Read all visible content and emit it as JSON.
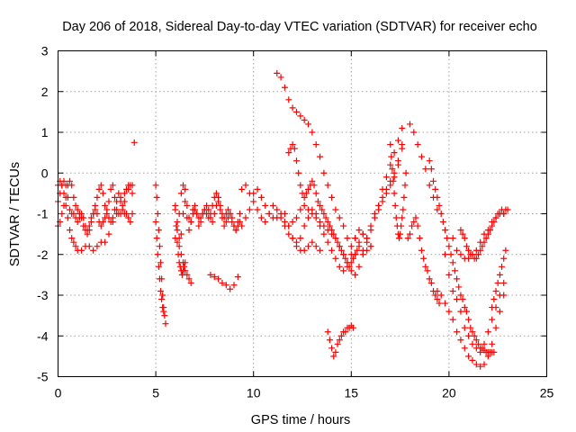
{
  "chart_data": {
    "type": "scatter",
    "title": "Day 206 of 2018, Sidereal Day-to-day VTEC variation (SDTVAR) for receiver echo",
    "xlabel": "GPS time / hours",
    "ylabel": "SDTVAR / TECUs",
    "xlim": [
      0,
      25
    ],
    "ylim": [
      -5,
      3
    ],
    "xticks": [
      0,
      5,
      10,
      15,
      20,
      25
    ],
    "yticks": [
      -5,
      -4,
      -3,
      -2,
      -1,
      0,
      1,
      2,
      3
    ],
    "grid": true,
    "marker": "+",
    "color": "#ff0000",
    "series": [
      {
        "name": "SDTVAR",
        "x": [
          0.0,
          0.1,
          0.2,
          0.3,
          0.4,
          0.5,
          0.6,
          0.7,
          0.8,
          0.9,
          1.0,
          1.1,
          1.2,
          1.3,
          1.4,
          1.5,
          1.6,
          1.7,
          1.8,
          1.9,
          2.0,
          2.1,
          2.2,
          2.3,
          2.4,
          2.5,
          2.6,
          2.7,
          2.8,
          2.9,
          3.0,
          3.1,
          3.2,
          3.3,
          3.4,
          3.5,
          3.6,
          3.7,
          3.8,
          0.0,
          0.1,
          0.2,
          0.3,
          0.4,
          0.5,
          0.6,
          0.7,
          0.8,
          0.9,
          1.0,
          1.1,
          1.2,
          1.3,
          1.4,
          1.5,
          1.6,
          1.7,
          1.8,
          1.9,
          2.0,
          2.1,
          2.2,
          2.3,
          2.4,
          2.5,
          2.6,
          2.7,
          2.8,
          2.9,
          3.0,
          3.1,
          3.2,
          3.3,
          3.4,
          3.5,
          3.6,
          3.7,
          3.8,
          0.0,
          0.1,
          0.2,
          0.3,
          0.4,
          0.5,
          0.6,
          0.7,
          0.8,
          0.9,
          1.0,
          1.2,
          1.4,
          1.6,
          1.8,
          2.0,
          2.2,
          2.4,
          2.6,
          2.8,
          3.0,
          3.2,
          3.4,
          3.6,
          3.8,
          3.9,
          5.0,
          5.05,
          5.1,
          5.15,
          5.2,
          5.25,
          5.3,
          5.35,
          5.4,
          5.45,
          5.5,
          5.0,
          5.05,
          5.1,
          5.15,
          5.2,
          5.25,
          5.3,
          5.35,
          5.4,
          6.0,
          6.1,
          6.2,
          6.3,
          6.4,
          6.5,
          6.6,
          6.7,
          6.8,
          6.9,
          7.0,
          7.1,
          7.2,
          7.3,
          7.4,
          7.5,
          7.6,
          7.7,
          7.8,
          7.9,
          8.0,
          8.1,
          8.2,
          8.3,
          8.4,
          8.5,
          8.6,
          8.7,
          8.8,
          8.9,
          9.0,
          9.1,
          9.2,
          9.3,
          6.0,
          6.1,
          6.2,
          6.3,
          6.4,
          6.5,
          6.6,
          6.7,
          6.8,
          6.9,
          7.0,
          7.1,
          7.2,
          7.3,
          7.4,
          7.5,
          7.6,
          7.7,
          7.8,
          7.9,
          8.0,
          8.1,
          8.2,
          8.3,
          8.4,
          8.5,
          8.6,
          8.7,
          8.8,
          8.9,
          9.0,
          9.1,
          9.2,
          9.3,
          6.0,
          6.05,
          6.1,
          6.15,
          6.2,
          6.25,
          6.3,
          6.35,
          6.4,
          6.45,
          6.5,
          6.2,
          6.3,
          6.4,
          6.5,
          6.6,
          6.7,
          6.8,
          7.8,
          8.0,
          8.2,
          8.4,
          8.6,
          8.8,
          9.0,
          9.2,
          9.4,
          9.6,
          9.8,
          10.0,
          10.2,
          10.4,
          10.6,
          10.8,
          11.0,
          11.2,
          11.4,
          11.6,
          11.8,
          12.0,
          12.2,
          12.4,
          12.6,
          12.8,
          13.0,
          13.2,
          13.4,
          13.6,
          13.8,
          14.0,
          14.2,
          14.4,
          14.6,
          14.8,
          15.0,
          15.2,
          15.4,
          15.6,
          15.8,
          16.0,
          9.4,
          9.6,
          9.8,
          10.0,
          10.2,
          10.4,
          10.6,
          10.8,
          11.0,
          11.2,
          11.4,
          11.6,
          11.8,
          12.0,
          12.2,
          12.4,
          12.6,
          12.8,
          13.0,
          13.2,
          13.4,
          13.6,
          13.8,
          14.0,
          14.2,
          14.4,
          14.6,
          14.8,
          15.0,
          15.2,
          15.4,
          15.6,
          15.8,
          16.0,
          11.2,
          11.4,
          11.6,
          11.8,
          12.0,
          12.2,
          12.4,
          12.6,
          12.8,
          13.0,
          13.2,
          13.4,
          13.6,
          13.8,
          14.0,
          14.2,
          14.4,
          14.6,
          14.8,
          15.0,
          11.8,
          11.9,
          12.0,
          12.1,
          12.2,
          12.3,
          12.4,
          12.5,
          12.6,
          12.7,
          12.8,
          12.9,
          13.0,
          13.1,
          13.2,
          13.3,
          13.4,
          13.5,
          13.6,
          13.7,
          13.8,
          13.9,
          14.0,
          14.1,
          14.2,
          14.3,
          14.4,
          14.5,
          14.6,
          14.7,
          14.8,
          14.9,
          15.0,
          15.1,
          15.2,
          15.3,
          11.6,
          11.8,
          12.0,
          12.2,
          12.4,
          12.6,
          12.8,
          13.0,
          13.2,
          13.4,
          13.8,
          13.9,
          14.0,
          14.1,
          14.2,
          14.3,
          14.4,
          14.5,
          14.6,
          14.7,
          14.8,
          14.9,
          15.0,
          15.1,
          15.2,
          15.4,
          15.6,
          15.8,
          16.0,
          16.2,
          16.4,
          16.6,
          16.8,
          17.0,
          17.2,
          17.4,
          17.6,
          15.2,
          15.4,
          15.6,
          15.8,
          16.0,
          16.2,
          16.4,
          16.6,
          16.8,
          17.0,
          17.2,
          17.4,
          17.6,
          16.4,
          16.6,
          16.8,
          17.0,
          17.2,
          17.4,
          17.6,
          17.0,
          17.05,
          17.1,
          17.15,
          17.2,
          17.25,
          17.3,
          17.35,
          17.4,
          17.45,
          17.5,
          17.55,
          17.6,
          17.65,
          17.7,
          17.75,
          17.8,
          17.9,
          18.0,
          18.1,
          18.2,
          18.3,
          18.4,
          18.5,
          18.6,
          18.7,
          18.8,
          18.9,
          19.0,
          19.1,
          19.2,
          19.3,
          19.4,
          19.5,
          18.0,
          18.2,
          18.4,
          18.6,
          18.8,
          19.0,
          19.2,
          19.4,
          19.0,
          19.1,
          19.2,
          19.3,
          19.4,
          19.5,
          19.6,
          19.7,
          19.8,
          19.9,
          20.0,
          20.1,
          20.2,
          20.3,
          20.4,
          20.5,
          20.6,
          20.7,
          20.8,
          20.9,
          21.0,
          21.1,
          21.2,
          21.3,
          21.4,
          21.5,
          21.6,
          21.7,
          21.8,
          21.9,
          22.0,
          22.1,
          22.2,
          22.3,
          19.8,
          20.0,
          20.2,
          20.4,
          20.6,
          20.8,
          21.0,
          21.2,
          21.4,
          21.6,
          21.8,
          22.0,
          22.2,
          22.4,
          22.6,
          22.8,
          19.4,
          19.6,
          19.8,
          20.0,
          20.2,
          20.4,
          20.6,
          20.8,
          21.0,
          21.2,
          21.4,
          21.6,
          21.8,
          22.0,
          22.2,
          22.4,
          22.6,
          22.8,
          20.2,
          20.4,
          20.6,
          20.8,
          21.0,
          21.2,
          21.4,
          21.6,
          21.8,
          22.0,
          22.2,
          22.4,
          22.6,
          22.8,
          20.6,
          20.7,
          20.8,
          20.9,
          21.0,
          21.1,
          21.2,
          21.3,
          21.4,
          21.5,
          21.6,
          21.7,
          21.8,
          21.9,
          22.0,
          22.1,
          22.2,
          22.3,
          22.4,
          22.5,
          22.6,
          22.7,
          22.8,
          22.9,
          23.0,
          22.2,
          22.3,
          22.4,
          22.5,
          22.6,
          22.7,
          22.8,
          22.9
        ],
        "y": [
          -0.7,
          -0.5,
          -0.3,
          -0.2,
          -0.3,
          -0.6,
          -0.9,
          -1.0,
          -1.0,
          -1.1,
          -1.2,
          -1.1,
          -1.0,
          -1.1,
          -1.3,
          -1.4,
          -1.3,
          -1.1,
          -1.0,
          -0.9,
          -1.0,
          -1.2,
          -1.3,
          -1.2,
          -1.1,
          -1.0,
          -0.7,
          -0.4,
          -0.3,
          -0.6,
          -0.9,
          -1.0,
          -1.0,
          -0.9,
          -0.7,
          -0.4,
          -0.3,
          -0.3,
          -0.3,
          -1.3,
          -1.2,
          -1.0,
          -0.8,
          -0.6,
          -0.3,
          -0.2,
          -0.3,
          -0.6,
          -0.8,
          -0.9,
          -1.0,
          -1.1,
          -1.3,
          -1.4,
          -1.5,
          -1.4,
          -1.2,
          -1.0,
          -0.8,
          -0.6,
          -0.4,
          -0.3,
          -0.5,
          -0.8,
          -0.9,
          -1.1,
          -1.2,
          -1.1,
          -0.9,
          -0.7,
          -0.5,
          -0.6,
          -0.8,
          -1.0,
          -1.0,
          -1.1,
          -1.2,
          -1.0,
          -0.3,
          -0.2,
          -0.3,
          -0.5,
          -0.8,
          -1.1,
          -1.4,
          -1.6,
          -1.7,
          -1.8,
          -1.9,
          -1.9,
          -1.8,
          -1.8,
          -1.9,
          -1.8,
          -1.7,
          -1.7,
          -1.5,
          -1.2,
          -1.0,
          -0.7,
          -0.5,
          -0.4,
          -0.5,
          0.75,
          -0.3,
          -0.6,
          -1.0,
          -1.4,
          -1.8,
          -2.2,
          -2.6,
          -3.0,
          -3.3,
          -3.5,
          -3.7,
          -1.2,
          -1.6,
          -2.0,
          -2.3,
          -2.6,
          -2.9,
          -3.1,
          -3.3,
          -3.4,
          -0.8,
          -1.2,
          -1.6,
          -1.5,
          -1.0,
          -0.7,
          -1.1,
          -1.4,
          -1.2,
          -0.9,
          -0.8,
          -1.0,
          -1.3,
          -1.2,
          -1.0,
          -0.9,
          -0.8,
          -0.9,
          -1.1,
          -1.2,
          -1.0,
          -0.8,
          -0.7,
          -0.9,
          -1.1,
          -1.3,
          -1.2,
          -1.1,
          -1.0,
          -1.1,
          -1.3,
          -1.4,
          -1.2,
          -1.0,
          -1.6,
          -1.4,
          -1.0,
          -0.5,
          -0.3,
          -0.4,
          -0.8,
          -1.1,
          -1.2,
          -1.0,
          -0.9,
          -1.0,
          -1.1,
          -1.1,
          -1.0,
          -0.9,
          -1.0,
          -1.1,
          -1.0,
          -0.8,
          -0.6,
          -0.5,
          -0.6,
          -0.8,
          -1.0,
          -1.1,
          -1.0,
          -0.9,
          -1.0,
          -1.2,
          -1.3,
          -1.4,
          -1.3,
          -1.2,
          -0.9,
          -1.3,
          -1.7,
          -2.0,
          -2.2,
          -2.3,
          -2.4,
          -2.5,
          -2.4,
          -2.3,
          -2.2,
          -1.8,
          -2.0,
          -2.2,
          -2.4,
          -2.5,
          -2.6,
          -2.7,
          -2.5,
          -2.55,
          -2.6,
          -2.7,
          -2.75,
          -2.85,
          -2.75,
          -2.55,
          -1.3,
          -1.1,
          -0.9,
          -0.5,
          -0.4,
          -0.6,
          -0.8,
          -1.0,
          -1.1,
          -1.1,
          -1.0,
          -1.2,
          -1.3,
          -1.2,
          -1.1,
          -0.9,
          -0.8,
          -0.9,
          -1.0,
          -1.1,
          -1.3,
          -1.5,
          -1.7,
          -1.9,
          -2.1,
          -2.3,
          -2.4,
          -2.3,
          -2.0,
          -1.6,
          -1.4,
          -1.5,
          -1.7,
          -1.8,
          -0.4,
          -0.3,
          -0.5,
          -0.7,
          -0.9,
          -1.1,
          -1.2,
          -1.0,
          -0.8,
          -0.9,
          -1.1,
          -1.3,
          -1.5,
          -1.6,
          -1.7,
          -1.6,
          -1.3,
          -1.1,
          -0.9,
          -1.0,
          -1.2,
          -1.3,
          -1.4,
          -1.5,
          -1.6,
          -1.8,
          -2.0,
          -2.2,
          -2.4,
          -2.5,
          -2.3,
          -2.0,
          -1.9,
          -1.8,
          2.45,
          2.35,
          2.1,
          1.8,
          1.6,
          1.5,
          1.4,
          1.3,
          1.2,
          1.0,
          0.7,
          0.4,
          0.0,
          -0.3,
          -0.6,
          -0.9,
          -1.1,
          -1.3,
          -1.6,
          -1.8,
          0.5,
          0.6,
          0.7,
          0.6,
          0.3,
          0.0,
          -0.3,
          -0.5,
          -0.6,
          -0.5,
          -0.4,
          -0.3,
          -0.2,
          -0.3,
          -0.5,
          -0.7,
          -0.8,
          -0.9,
          -1.0,
          -1.1,
          -1.2,
          -1.3,
          -1.4,
          -1.5,
          -1.6,
          -1.7,
          -1.8,
          -1.9,
          -2.0,
          -2.1,
          -2.2,
          -2.3,
          -2.2,
          -2.1,
          -2.0,
          -1.9,
          -1.0,
          -1.3,
          -1.6,
          -1.8,
          -1.9,
          -1.9,
          -1.8,
          -1.7,
          -1.8,
          -1.9,
          -3.9,
          -4.1,
          -4.3,
          -4.5,
          -4.4,
          -4.2,
          -4.1,
          -4.0,
          -3.9,
          -3.9,
          -3.8,
          -3.8,
          -3.75,
          -3.8,
          -2.0,
          -1.7,
          -1.5,
          -1.6,
          -1.4,
          -1.0,
          -0.8,
          -0.6,
          -0.4,
          -0.2,
          0.0,
          0.3,
          0.7,
          -1.6,
          -1.8,
          -1.9,
          -1.6,
          -1.3,
          -1.1,
          -0.9,
          -0.7,
          -0.5,
          -0.3,
          -0.1,
          0.2,
          0.6,
          -0.8,
          -0.4,
          -0.1,
          0.2,
          0.5,
          0.8,
          1.1,
          0.7,
          0.4,
          0.1,
          -0.2,
          -0.5,
          -0.8,
          -1.1,
          -1.3,
          -1.5,
          -1.6,
          -1.5,
          -1.3,
          -1.1,
          -0.9,
          -0.6,
          -0.3,
          0.0,
          -1.6,
          -1.5,
          -1.3,
          -1.2,
          -1.1,
          -1.3,
          -1.6,
          -1.9,
          -2.1,
          -2.3,
          -2.4,
          -2.6,
          -2.7,
          -2.9,
          -3.0,
          -3.1,
          -3.2,
          1.2,
          1.0,
          0.7,
          0.4,
          0.1,
          -0.3,
          -0.6,
          -0.9,
          0.3,
          0.1,
          -0.2,
          -0.4,
          -0.6,
          -0.8,
          -1.0,
          -1.2,
          -1.4,
          -1.6,
          -1.8,
          -2.0,
          -2.2,
          -2.4,
          -2.6,
          -2.8,
          -3.0,
          -3.1,
          -3.3,
          -3.4,
          -3.6,
          -3.8,
          -3.9,
          -4.0,
          -4.1,
          -4.2,
          -4.3,
          -4.3,
          -4.35,
          -4.4,
          -4.4,
          -4.4,
          -4.4,
          -4.4,
          -2.0,
          -2.5,
          -2.9,
          -3.1,
          -3.4,
          -3.8,
          -4.0,
          -4.2,
          -4.3,
          -4.4,
          -4.2,
          -3.9,
          -3.6,
          -3.3,
          -3.0,
          -2.7,
          -2.9,
          -3.0,
          -3.2,
          -3.4,
          -3.6,
          -3.9,
          -4.1,
          -4.3,
          -4.5,
          -4.6,
          -4.7,
          -4.75,
          -4.7,
          -4.5,
          -4.2,
          -3.8,
          -3.4,
          -3.0,
          -1.6,
          -1.9,
          -2.0,
          -2.1,
          -2.1,
          -2.0,
          -1.9,
          -1.7,
          -1.5,
          -1.4,
          -1.2,
          -1.1,
          -1.0,
          -1.0,
          -1.4,
          -1.5,
          -1.6,
          -1.8,
          -1.9,
          -2.0,
          -2.0,
          -2.1,
          -2.1,
          -2.0,
          -1.9,
          -1.8,
          -1.7,
          -1.6,
          -1.5,
          -1.4,
          -1.3,
          -1.2,
          -1.1,
          -1.0,
          -1.0,
          -0.9,
          -1.0,
          -0.9,
          -0.9,
          -3.3,
          -3.1,
          -2.9,
          -2.7,
          -2.5,
          -2.3,
          -2.1,
          -1.9
        ]
      }
    ]
  }
}
